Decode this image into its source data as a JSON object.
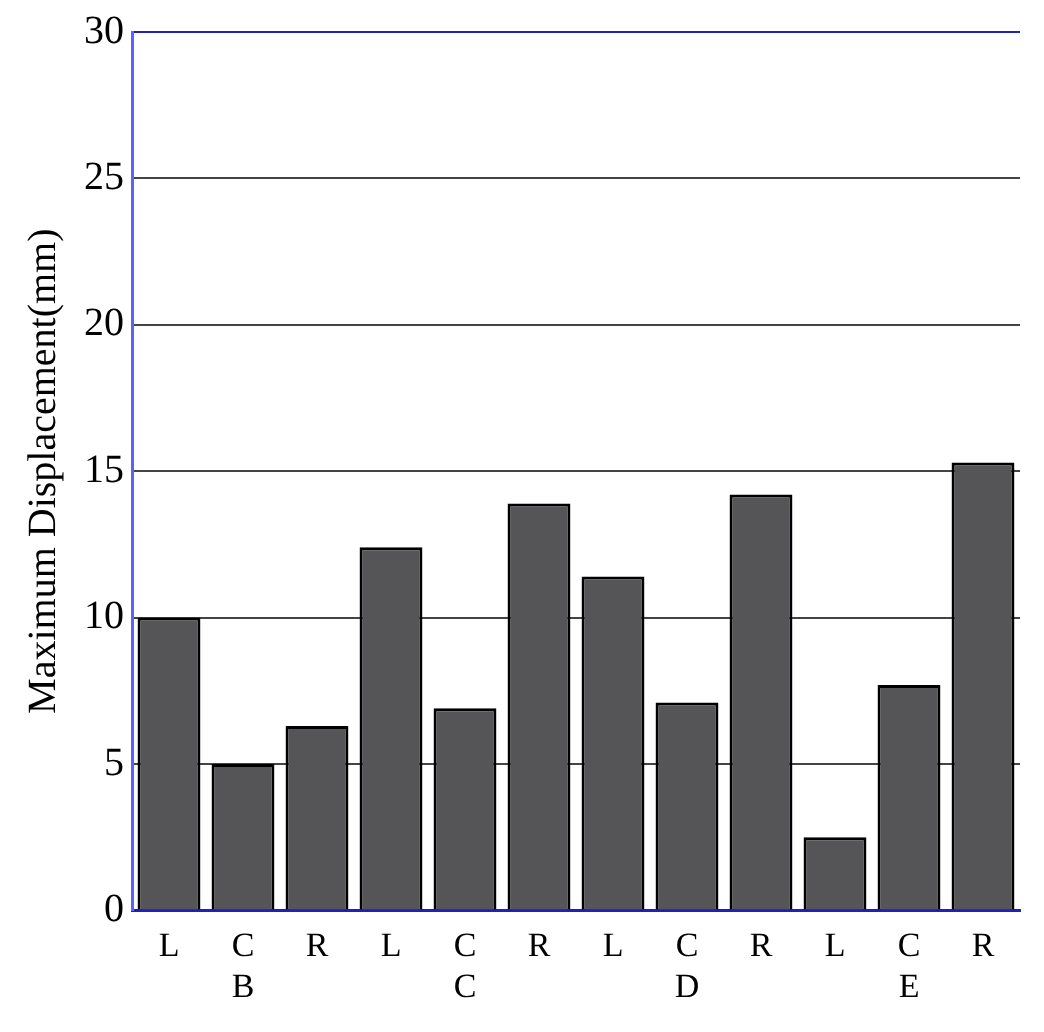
{
  "chart_data": {
    "type": "bar",
    "ylabel": "Maximum Displacement(mm)",
    "categories": [
      "L",
      "C\nB",
      "R",
      "L",
      "C\nC",
      "R",
      "L",
      "C\nD",
      "R",
      "L",
      "C\nE",
      "R"
    ],
    "values": [
      10.0,
      5.0,
      6.3,
      12.4,
      6.9,
      13.9,
      11.4,
      7.1,
      14.2,
      2.5,
      7.7,
      15.3
    ],
    "color": "#555558",
    "ylim": [
      0,
      30
    ],
    "yticks": [
      0,
      5,
      10,
      15,
      20,
      25,
      30
    ],
    "grid": "y",
    "legend": false
  }
}
